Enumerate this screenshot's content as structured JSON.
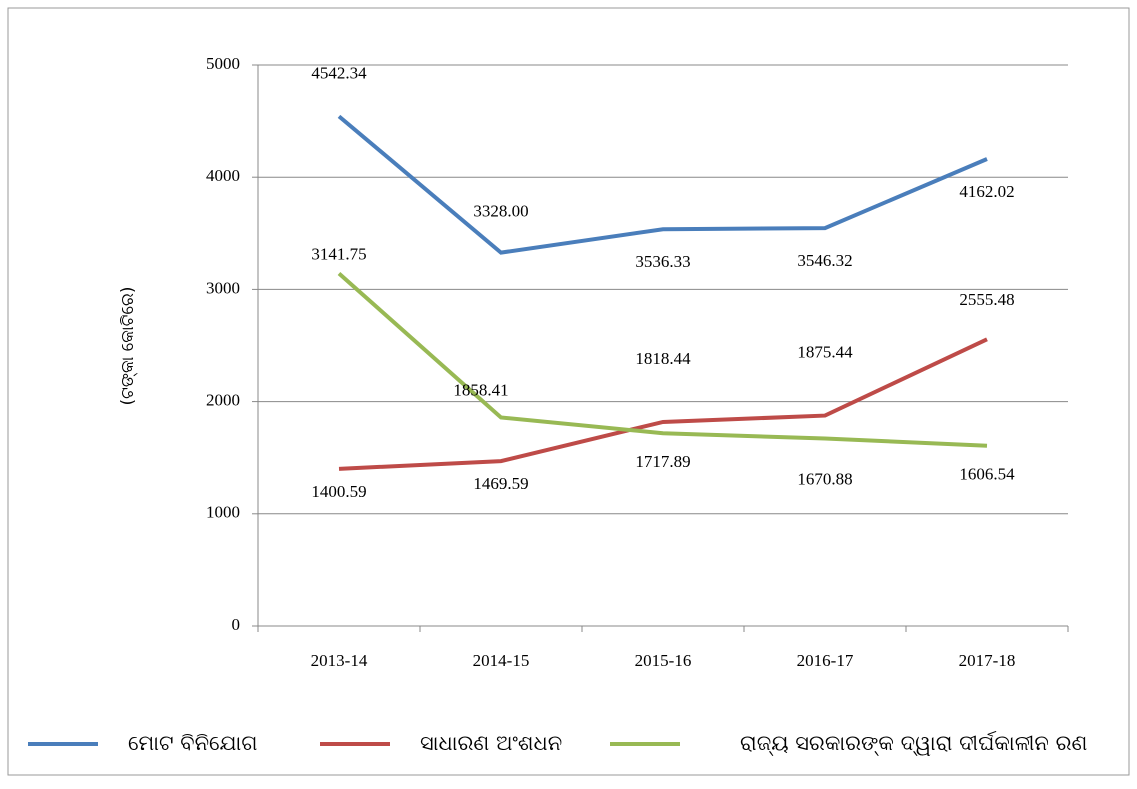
{
  "chart_data": {
    "type": "line",
    "y_axis_label": "(ଟଙ୍କା କୋଟିରେ)",
    "categories": [
      "2013-14",
      "2014-15",
      "2015-16",
      "2016-17",
      "2017-18"
    ],
    "series": [
      {
        "name": "ମୋଟ ବିନିଯୋଗ",
        "color": "#4a7ebb",
        "values": [
          4542.34,
          3328,
          3536.33,
          3546.32,
          4162.02
        ],
        "value_labels": [
          "4542.34",
          "3328.00",
          "3536.33",
          "3546.32",
          "4162.02"
        ]
      },
      {
        "name": "ସାଧାରଣ ଅଂଶଧନ",
        "color": "#be4b48",
        "values": [
          1400.59,
          1469.59,
          1818.44,
          1875.44,
          2555.48
        ],
        "value_labels": [
          "1400.59",
          "1469.59",
          "1818.44",
          "1875.44",
          "2555.48"
        ]
      },
      {
        "name": "ରାଜ୍ୟ ସରକାରଙ୍କ ଦ୍ୱାରା ଦୀର୍ଘକାଳୀନ ରଣ",
        "color": "#98b954",
        "values": [
          3141.75,
          1858.41,
          1717.89,
          1670.88,
          1606.54
        ],
        "value_labels": [
          "3141.75",
          "1858.41",
          "1717.89",
          "1670.88",
          "1606.54"
        ]
      }
    ],
    "ylim": [
      0,
      5000
    ],
    "yticks": [
      0,
      1000,
      2000,
      3000,
      4000,
      5000
    ],
    "grid": true,
    "legend": "bottom"
  }
}
